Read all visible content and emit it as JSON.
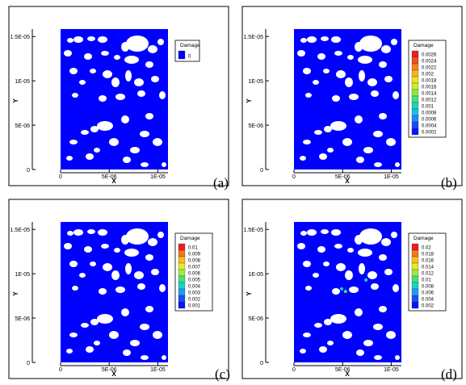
{
  "colors": {
    "field": "#0000ff",
    "pore": "#ffffff",
    "frame": "#000000"
  },
  "chart_data": [
    {
      "type": "heatmap",
      "panel_label": "(a)",
      "xlabel": "X",
      "ylabel": "Y",
      "xlim": [
        0,
        1.2e-05
      ],
      "ylim": [
        0,
        1.6e-05
      ],
      "xticks": [
        {
          "v": 0,
          "label": "0"
        },
        {
          "v": 5e-06,
          "label": "5E-06"
        },
        {
          "v": 1e-05,
          "label": "1E-05"
        }
      ],
      "yticks": [
        {
          "v": 0,
          "label": "0"
        },
        {
          "v": 5e-06,
          "label": "5E-06"
        },
        {
          "v": 1e-05,
          "label": "1E-05"
        },
        {
          "v": 1.5e-05,
          "label": "1.5E-05"
        }
      ],
      "legend": {
        "title": "Damage",
        "levels": [
          "0"
        ],
        "colors": [
          "#0000ff"
        ]
      },
      "hotspots": []
    },
    {
      "type": "heatmap",
      "panel_label": "(b)",
      "xlabel": "X",
      "ylabel": "Y",
      "xlim": [
        0,
        1.2e-05
      ],
      "ylim": [
        0,
        1.6e-05
      ],
      "xticks": [
        {
          "v": 0,
          "label": "0"
        },
        {
          "v": 5e-06,
          "label": "5E-06"
        },
        {
          "v": 1e-05,
          "label": "1E-05"
        }
      ],
      "yticks": [
        {
          "v": 0,
          "label": "0"
        },
        {
          "v": 5e-06,
          "label": "5E-06"
        },
        {
          "v": 1e-05,
          "label": "1E-05"
        },
        {
          "v": 1.5e-05,
          "label": "1.5E-05"
        }
      ],
      "legend": {
        "title": "Damage",
        "levels": [
          "0.0026",
          "0.0024",
          "0.0022",
          "0.002",
          "0.0018",
          "0.0016",
          "0.0014",
          "0.0012",
          "0.001",
          "0.0008",
          "0.0006",
          "0.0004",
          "0.0002"
        ],
        "colors": [
          "#e8201c",
          "#f0521e",
          "#f7801f",
          "#fbb21f",
          "#f5dc26",
          "#c9ef2c",
          "#8ce84a",
          "#45e07f",
          "#19d8b6",
          "#1bbfe9",
          "#1a8cf6",
          "#154cf8",
          "#0b14f6"
        ]
      },
      "hotspots": []
    },
    {
      "type": "heatmap",
      "panel_label": "(c)",
      "xlabel": "X",
      "ylabel": "Y",
      "xlim": [
        0,
        1.2e-05
      ],
      "ylim": [
        0,
        1.6e-05
      ],
      "xticks": [
        {
          "v": 0,
          "label": "0"
        },
        {
          "v": 5e-06,
          "label": "5E-06"
        },
        {
          "v": 1e-05,
          "label": "1E-05"
        }
      ],
      "yticks": [
        {
          "v": 0,
          "label": "0"
        },
        {
          "v": 5e-06,
          "label": "5E-06"
        },
        {
          "v": 1e-05,
          "label": "1E-05"
        },
        {
          "v": 1.5e-05,
          "label": "1.5E-05"
        }
      ],
      "legend": {
        "title": "Damage",
        "levels": [
          "0.01",
          "0.009",
          "0.008",
          "0.007",
          "0.006",
          "0.005",
          "0.004",
          "0.003",
          "0.002",
          "0.001"
        ],
        "colors": [
          "#e8201c",
          "#f5741f",
          "#fbba1f",
          "#e8ea28",
          "#9eea44",
          "#45e07f",
          "#19d4c2",
          "#1a9ef5",
          "#1650f8",
          "#0b14f6"
        ]
      },
      "hotspots": []
    },
    {
      "type": "heatmap",
      "panel_label": "(d)",
      "xlabel": "X",
      "ylabel": "Y",
      "xlim": [
        0,
        1.2e-05
      ],
      "ylim": [
        0,
        1.6e-05
      ],
      "xticks": [
        {
          "v": 0,
          "label": "0"
        },
        {
          "v": 5e-06,
          "label": "5E-06"
        },
        {
          "v": 1e-05,
          "label": "1E-05"
        }
      ],
      "yticks": [
        {
          "v": 0,
          "label": "0"
        },
        {
          "v": 5e-06,
          "label": "5E-06"
        },
        {
          "v": 1e-05,
          "label": "1E-05"
        },
        {
          "v": 1.5e-05,
          "label": "1.5E-05"
        }
      ],
      "legend": {
        "title": "Damage",
        "levels": [
          "0.02",
          "0.018",
          "0.016",
          "0.014",
          "0.012",
          "0.01",
          "0.008",
          "0.006",
          "0.004",
          "0.002"
        ],
        "colors": [
          "#e8201c",
          "#f5741f",
          "#fbba1f",
          "#e8ea28",
          "#9eea44",
          "#45e07f",
          "#19d4c2",
          "#1a9ef5",
          "#1650f8",
          "#0b14f6"
        ]
      },
      "hotspots": [
        {
          "x": 4.9e-06,
          "y": 8.3e-06,
          "color": "#19d4c2"
        },
        {
          "x": 5.3e-06,
          "y": 8e-06,
          "color": "#45e07f"
        },
        {
          "x": 7.4e-06,
          "y": 9.3e-06,
          "color": "#19d4c2"
        }
      ]
    }
  ]
}
